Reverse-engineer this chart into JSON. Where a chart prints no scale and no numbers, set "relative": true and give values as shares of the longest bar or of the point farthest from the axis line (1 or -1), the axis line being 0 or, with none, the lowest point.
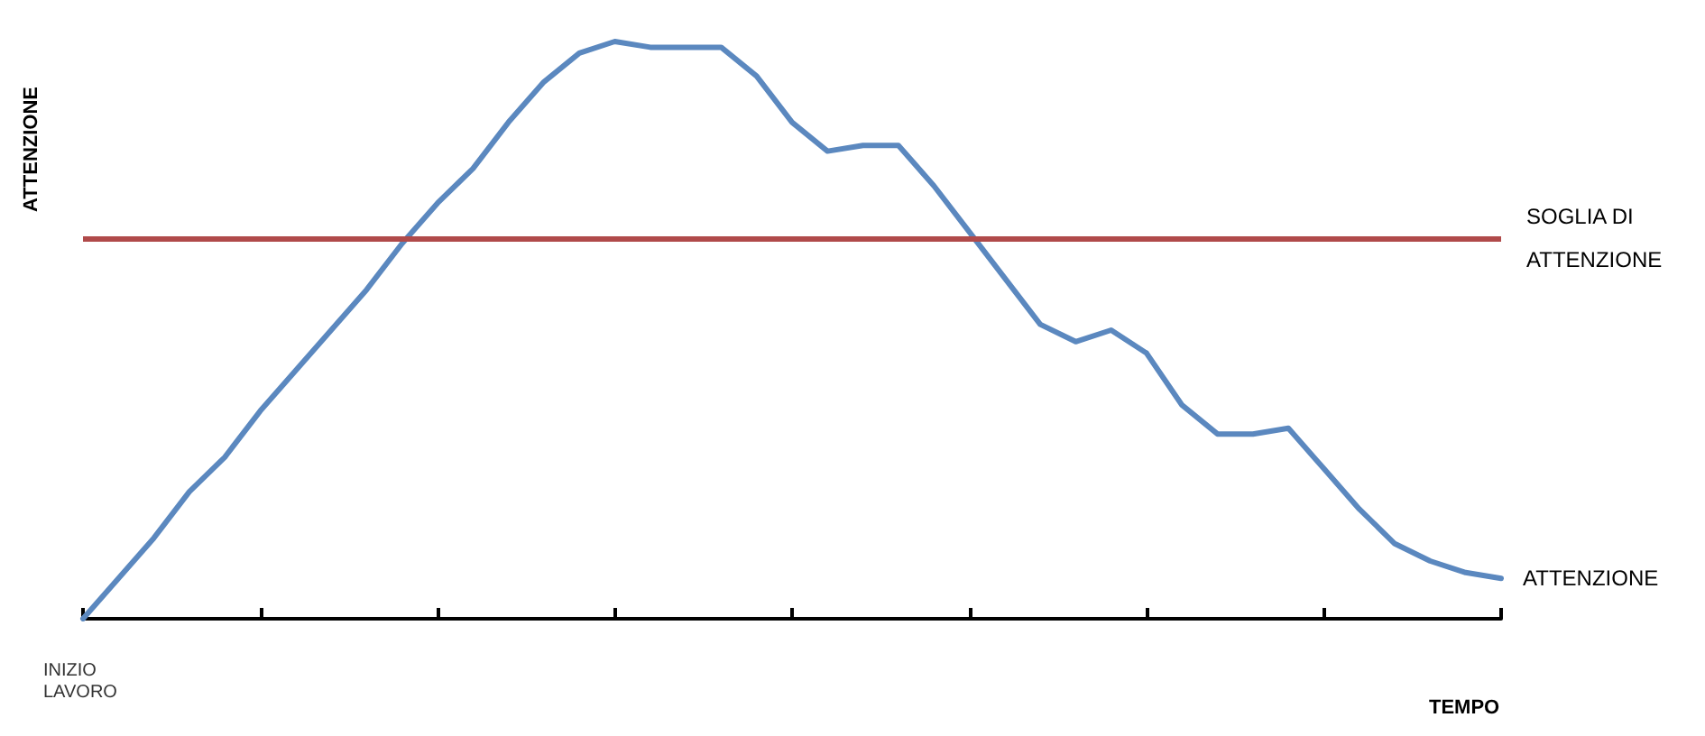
{
  "chart_data": {
    "type": "line",
    "relative": true,
    "xlabel": "TEMPO",
    "ylabel": "ATTENZIONE",
    "annotations": [
      "INIZIO LAVORO"
    ],
    "categories": [
      null,
      null,
      null,
      null,
      null,
      null,
      null,
      null,
      null,
      null,
      null,
      null,
      null,
      null,
      null,
      null,
      null,
      null,
      null,
      null,
      null,
      null,
      null,
      null,
      null,
      null,
      null,
      null,
      null,
      null,
      null,
      null,
      null,
      null,
      null,
      null,
      null,
      null,
      null,
      null,
      null
    ],
    "series": [
      {
        "name": "ATTENZIONE",
        "color": "#5b88bf",
        "values": [
          0,
          0.07,
          0.14,
          0.22,
          0.28,
          0.36,
          0.43,
          0.5,
          0.57,
          0.65,
          0.72,
          0.78,
          0.86,
          0.93,
          0.98,
          1,
          0.99,
          0.99,
          0.99,
          0.94,
          0.86,
          0.81,
          0.82,
          0.82,
          0.75,
          0.67,
          0.59,
          0.51,
          0.48,
          0.5,
          0.46,
          0.37,
          0.32,
          0.32,
          0.33,
          0.26,
          0.19,
          0.13,
          0.1,
          0.08,
          0.07
        ]
      }
    ],
    "ref_lines": [
      {
        "axis": "y",
        "value": 0.66,
        "label": "SOGLIA DI\nATTENZIONE",
        "color": "#b04a4a"
      }
    ],
    "grid": false,
    "legend": false,
    "marker": "none",
    "line_style": "solid"
  }
}
